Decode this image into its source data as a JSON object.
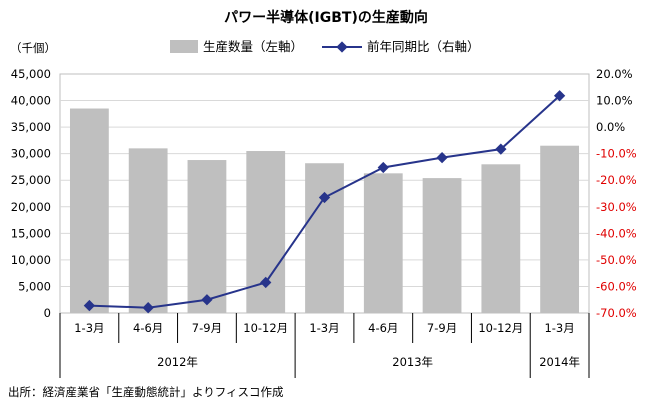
{
  "chart_data": {
    "type": "bar+line",
    "title": "パワー半導体(IGBT)の生産動向",
    "left_axis_unit": "（千個）",
    "legend": {
      "bar_label": "生産数量（左軸）",
      "line_label": "前年同期比（右軸）",
      "placement": "top-center"
    },
    "categories": [
      "1-3月",
      "4-6月",
      "7-9月",
      "10-12月",
      "1-3月",
      "4-6月",
      "7-9月",
      "10-12月",
      "1-3月"
    ],
    "year_groups": [
      {
        "label": "2012年",
        "span": 4
      },
      {
        "label": "2013年",
        "span": 4
      },
      {
        "label": "2014年",
        "span": 1
      }
    ],
    "series": [
      {
        "name": "生産数量（左軸）",
        "kind": "bar",
        "axis": "left",
        "color": "#bfbfbf",
        "values": [
          38500,
          31000,
          28800,
          30500,
          28200,
          26300,
          25400,
          28000,
          31500
        ]
      },
      {
        "name": "前年同期比（右軸）",
        "kind": "line",
        "axis": "right",
        "color": "#27348b",
        "values": [
          -67.2,
          -68.0,
          -65.0,
          -58.5,
          -26.5,
          -15.2,
          -11.5,
          -8.3,
          11.8
        ]
      }
    ],
    "left_axis": {
      "min": 0,
      "max": 45000,
      "step": 5000,
      "tick_labels": [
        "0",
        "5,000",
        "10,000",
        "15,000",
        "20,000",
        "25,000",
        "30,000",
        "35,000",
        "40,000",
        "45,000"
      ]
    },
    "right_axis": {
      "min": -70,
      "max": 20,
      "step": 10,
      "tick_labels": [
        "-70.0%",
        "-60.0%",
        "-50.0%",
        "-40.0%",
        "-30.0%",
        "-20.0%",
        "-10.0%",
        "0.0%",
        "10.0%",
        "20.0%"
      ],
      "negative_color": "#e00000",
      "positive_color": "#000000"
    },
    "grid": true,
    "source": "出所：経済産業省「生産動態統計」よりフィスコ作成"
  }
}
